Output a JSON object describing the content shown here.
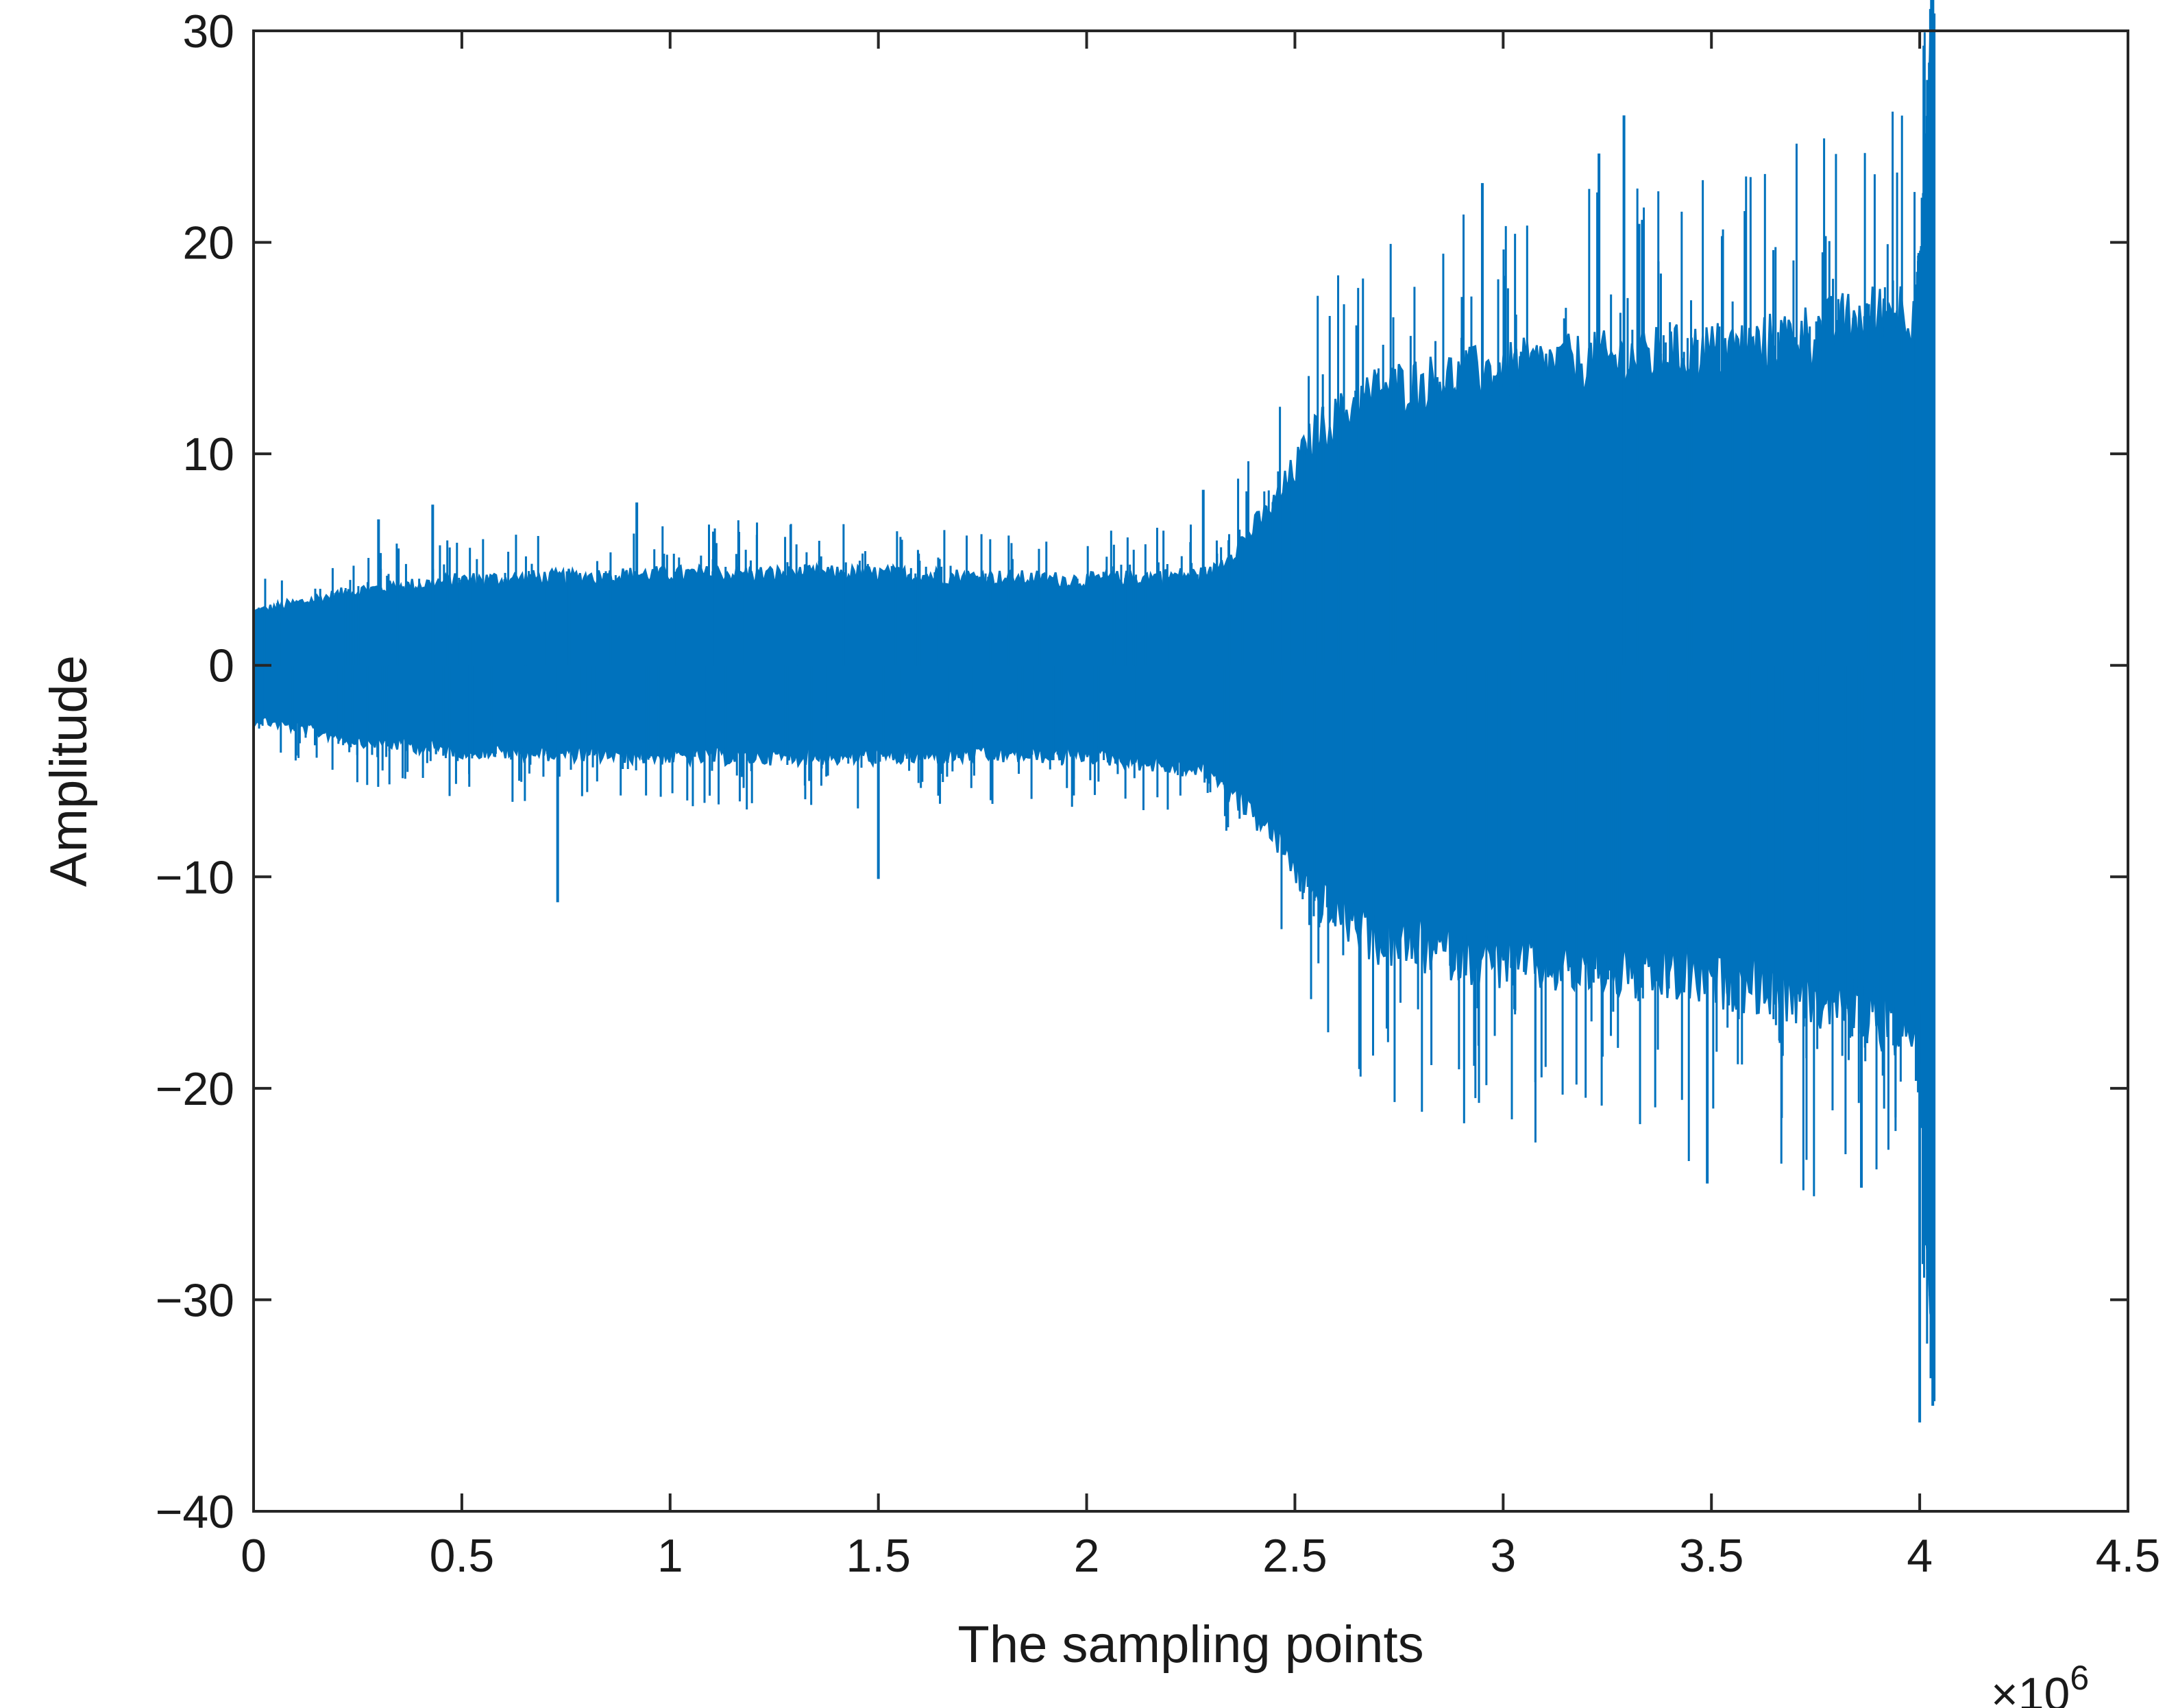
{
  "chart_data": {
    "type": "line",
    "title": "",
    "xlabel": "The sampling points",
    "ylabel": "Amplitude",
    "x_exponent_label": "×10",
    "x_exponent_power": "6",
    "xlim": [
      0,
      4.5
    ],
    "ylim": [
      -40,
      30
    ],
    "x_scale_factor": 1000000,
    "grid": false,
    "legend": "none",
    "x_ticks": [
      "0",
      "0.5",
      "1",
      "1.5",
      "2",
      "2.5",
      "3",
      "3.5",
      "4",
      "4.5"
    ],
    "y_ticks": [
      "30",
      "20",
      "10",
      "0",
      "−10",
      "−20",
      "−30",
      "−40"
    ],
    "series": [
      {
        "color": "#0072bd",
        "x_range": [
          0,
          4.03
        ],
        "envelope": {
          "x": [
            0,
            0.25,
            0.5,
            1.0,
            1.5,
            2.0,
            2.3,
            2.45,
            2.55,
            2.7,
            3.0,
            3.3,
            3.6,
            3.9,
            4.0,
            4.03
          ],
          "upper": [
            2.5,
            3.5,
            4.0,
            4.3,
            4.3,
            4.0,
            4.3,
            7.5,
            11.0,
            13.0,
            14.0,
            14.5,
            15.0,
            16.5,
            17.0,
            29.0
          ],
          "lower": [
            -2.5,
            -3.5,
            -4.0,
            -4.3,
            -4.3,
            -4.2,
            -5.0,
            -8.0,
            -11.0,
            -13.0,
            -14.0,
            -14.5,
            -15.0,
            -16.5,
            -18.0,
            -31.0
          ]
        },
        "peaks": [
          {
            "x": 0.3,
            "y": 6.9
          },
          {
            "x": 0.43,
            "y": 7.6
          },
          {
            "x": 0.73,
            "y": -11.2
          },
          {
            "x": 0.92,
            "y": 7.7
          },
          {
            "x": 1.5,
            "y": -10.1
          },
          {
            "x": 2.28,
            "y": 8.3
          },
          {
            "x": 2.95,
            "y": 22.8
          },
          {
            "x": 3.23,
            "y": 24.2
          },
          {
            "x": 3.29,
            "y": 26.0
          },
          {
            "x": 3.49,
            "y": -24.5
          },
          {
            "x": 3.86,
            "y": -24.7
          },
          {
            "x": 4.0,
            "y": -35.8
          },
          {
            "x": 4.01,
            "y": 29.3
          }
        ]
      }
    ]
  }
}
